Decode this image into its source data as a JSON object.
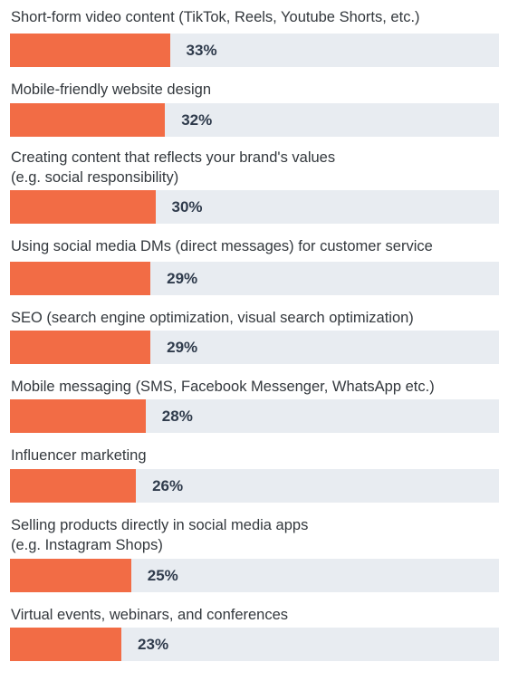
{
  "chart_data": {
    "type": "bar",
    "orientation": "horizontal",
    "categories": [
      "Short-form video content (TikTok, Reels, Youtube Shorts, etc.)",
      "Mobile-friendly website design",
      "Creating content that reflects your brand's values\n(e.g. social responsibility)",
      "Using social media DMs (direct messages) for customer service",
      "SEO (search engine optimization, visual search optimization)",
      "Mobile messaging (SMS, Facebook Messenger, WhatsApp etc.)",
      "Influencer marketing",
      "Selling products directly in social media apps\n(e.g. Instagram Shops)",
      "Virtual events, webinars, and conferences"
    ],
    "values": [
      33,
      32,
      30,
      29,
      29,
      28,
      26,
      25,
      23
    ],
    "value_labels": [
      "33%",
      "32%",
      "30%",
      "29%",
      "29%",
      "28%",
      "26%",
      "25%",
      "23%"
    ],
    "xlim": [
      0,
      100
    ],
    "grid": false,
    "legend": "none",
    "colors": {
      "bar": "#f26c45",
      "track": "#e8ecf1"
    }
  }
}
